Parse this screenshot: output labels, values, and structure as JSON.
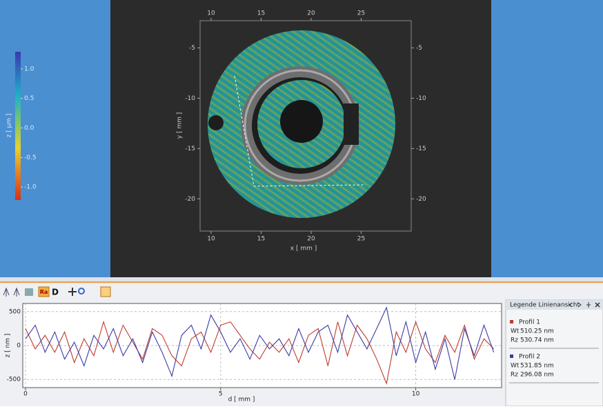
{
  "surface_view": {
    "xlabel": "x [ mm ]",
    "ylabel": "y [ mm ]",
    "xlim": [
      8.9,
      30.0
    ],
    "xticks": [
      10,
      15,
      20,
      25
    ],
    "ylim": [
      -23.2,
      -2.3
    ],
    "yticks": [
      -5,
      -10,
      -15,
      -20
    ],
    "colorbar": {
      "label": "z [ μm ]",
      "lim": [
        -1.22,
        1.29
      ],
      "ticks": [
        {
          "value": 1,
          "label": "1.0"
        },
        {
          "value": 0.5,
          "label": "0.5"
        },
        {
          "value": 0,
          "label": "0.0"
        },
        {
          "value": -0.5,
          "label": "-0.5"
        },
        {
          "value": -1,
          "label": "-1.0"
        }
      ]
    }
  },
  "toolbar": {
    "buttons": [
      "Ra",
      "D"
    ]
  },
  "chart_data": {
    "type": "line",
    "xlabel": "d [ mm ]",
    "ylabel": "z [ nm ]",
    "xlim": [
      0,
      12.2
    ],
    "ylim": [
      -620,
      620
    ],
    "xticks": [
      0,
      5,
      10
    ],
    "yticks": [
      -500,
      0,
      500
    ],
    "grid": true,
    "x": [
      0,
      0.25,
      0.5,
      0.75,
      1,
      1.25,
      1.5,
      1.75,
      2,
      2.25,
      2.5,
      2.75,
      3,
      3.25,
      3.5,
      3.75,
      4,
      4.25,
      4.5,
      4.75,
      5,
      5.25,
      5.5,
      5.75,
      6,
      6.25,
      6.5,
      6.75,
      7,
      7.25,
      7.5,
      7.75,
      8,
      8.25,
      8.5,
      8.75,
      9,
      9.25,
      9.5,
      9.75,
      10,
      10.25,
      10.5,
      10.75,
      11,
      11.25,
      11.5,
      11.75,
      12
    ],
    "series": [
      {
        "name": "Profil 1",
        "color": "#c0392b",
        "values": [
          250,
          -50,
          150,
          -100,
          200,
          -250,
          100,
          -150,
          350,
          -100,
          300,
          50,
          -200,
          250,
          150,
          -150,
          -300,
          100,
          200,
          -100,
          300,
          350,
          150,
          -50,
          -200,
          50,
          -100,
          100,
          -250,
          150,
          250,
          -300,
          350,
          -150,
          300,
          100,
          -200,
          -560,
          200,
          -100,
          350,
          -50,
          -250,
          150,
          -100,
          300,
          -200,
          100,
          -50
        ]
      },
      {
        "name": "Profil 2",
        "color": "#3a3aa8",
        "values": [
          100,
          300,
          -100,
          200,
          -200,
          50,
          -300,
          150,
          -50,
          250,
          -150,
          100,
          -250,
          200,
          -100,
          -450,
          150,
          300,
          -50,
          450,
          200,
          -100,
          100,
          -200,
          150,
          -50,
          100,
          -150,
          250,
          -100,
          200,
          300,
          -100,
          450,
          200,
          -50,
          250,
          560,
          -150,
          350,
          -250,
          200,
          -350,
          100,
          -500,
          250,
          -150,
          300,
          -100
        ]
      }
    ]
  },
  "legend_panel": {
    "title": "Legende Linienansicht",
    "entries": [
      {
        "stats": [
          {
            "label": "Wt",
            "value": "510.25 nm"
          },
          {
            "label": "Rz",
            "value": "530.74 nm"
          }
        ]
      },
      {
        "stats": [
          {
            "label": "Wt",
            "value": "531.85 nm"
          },
          {
            "label": "Rz",
            "value": "296.08 nm"
          }
        ]
      }
    ]
  }
}
